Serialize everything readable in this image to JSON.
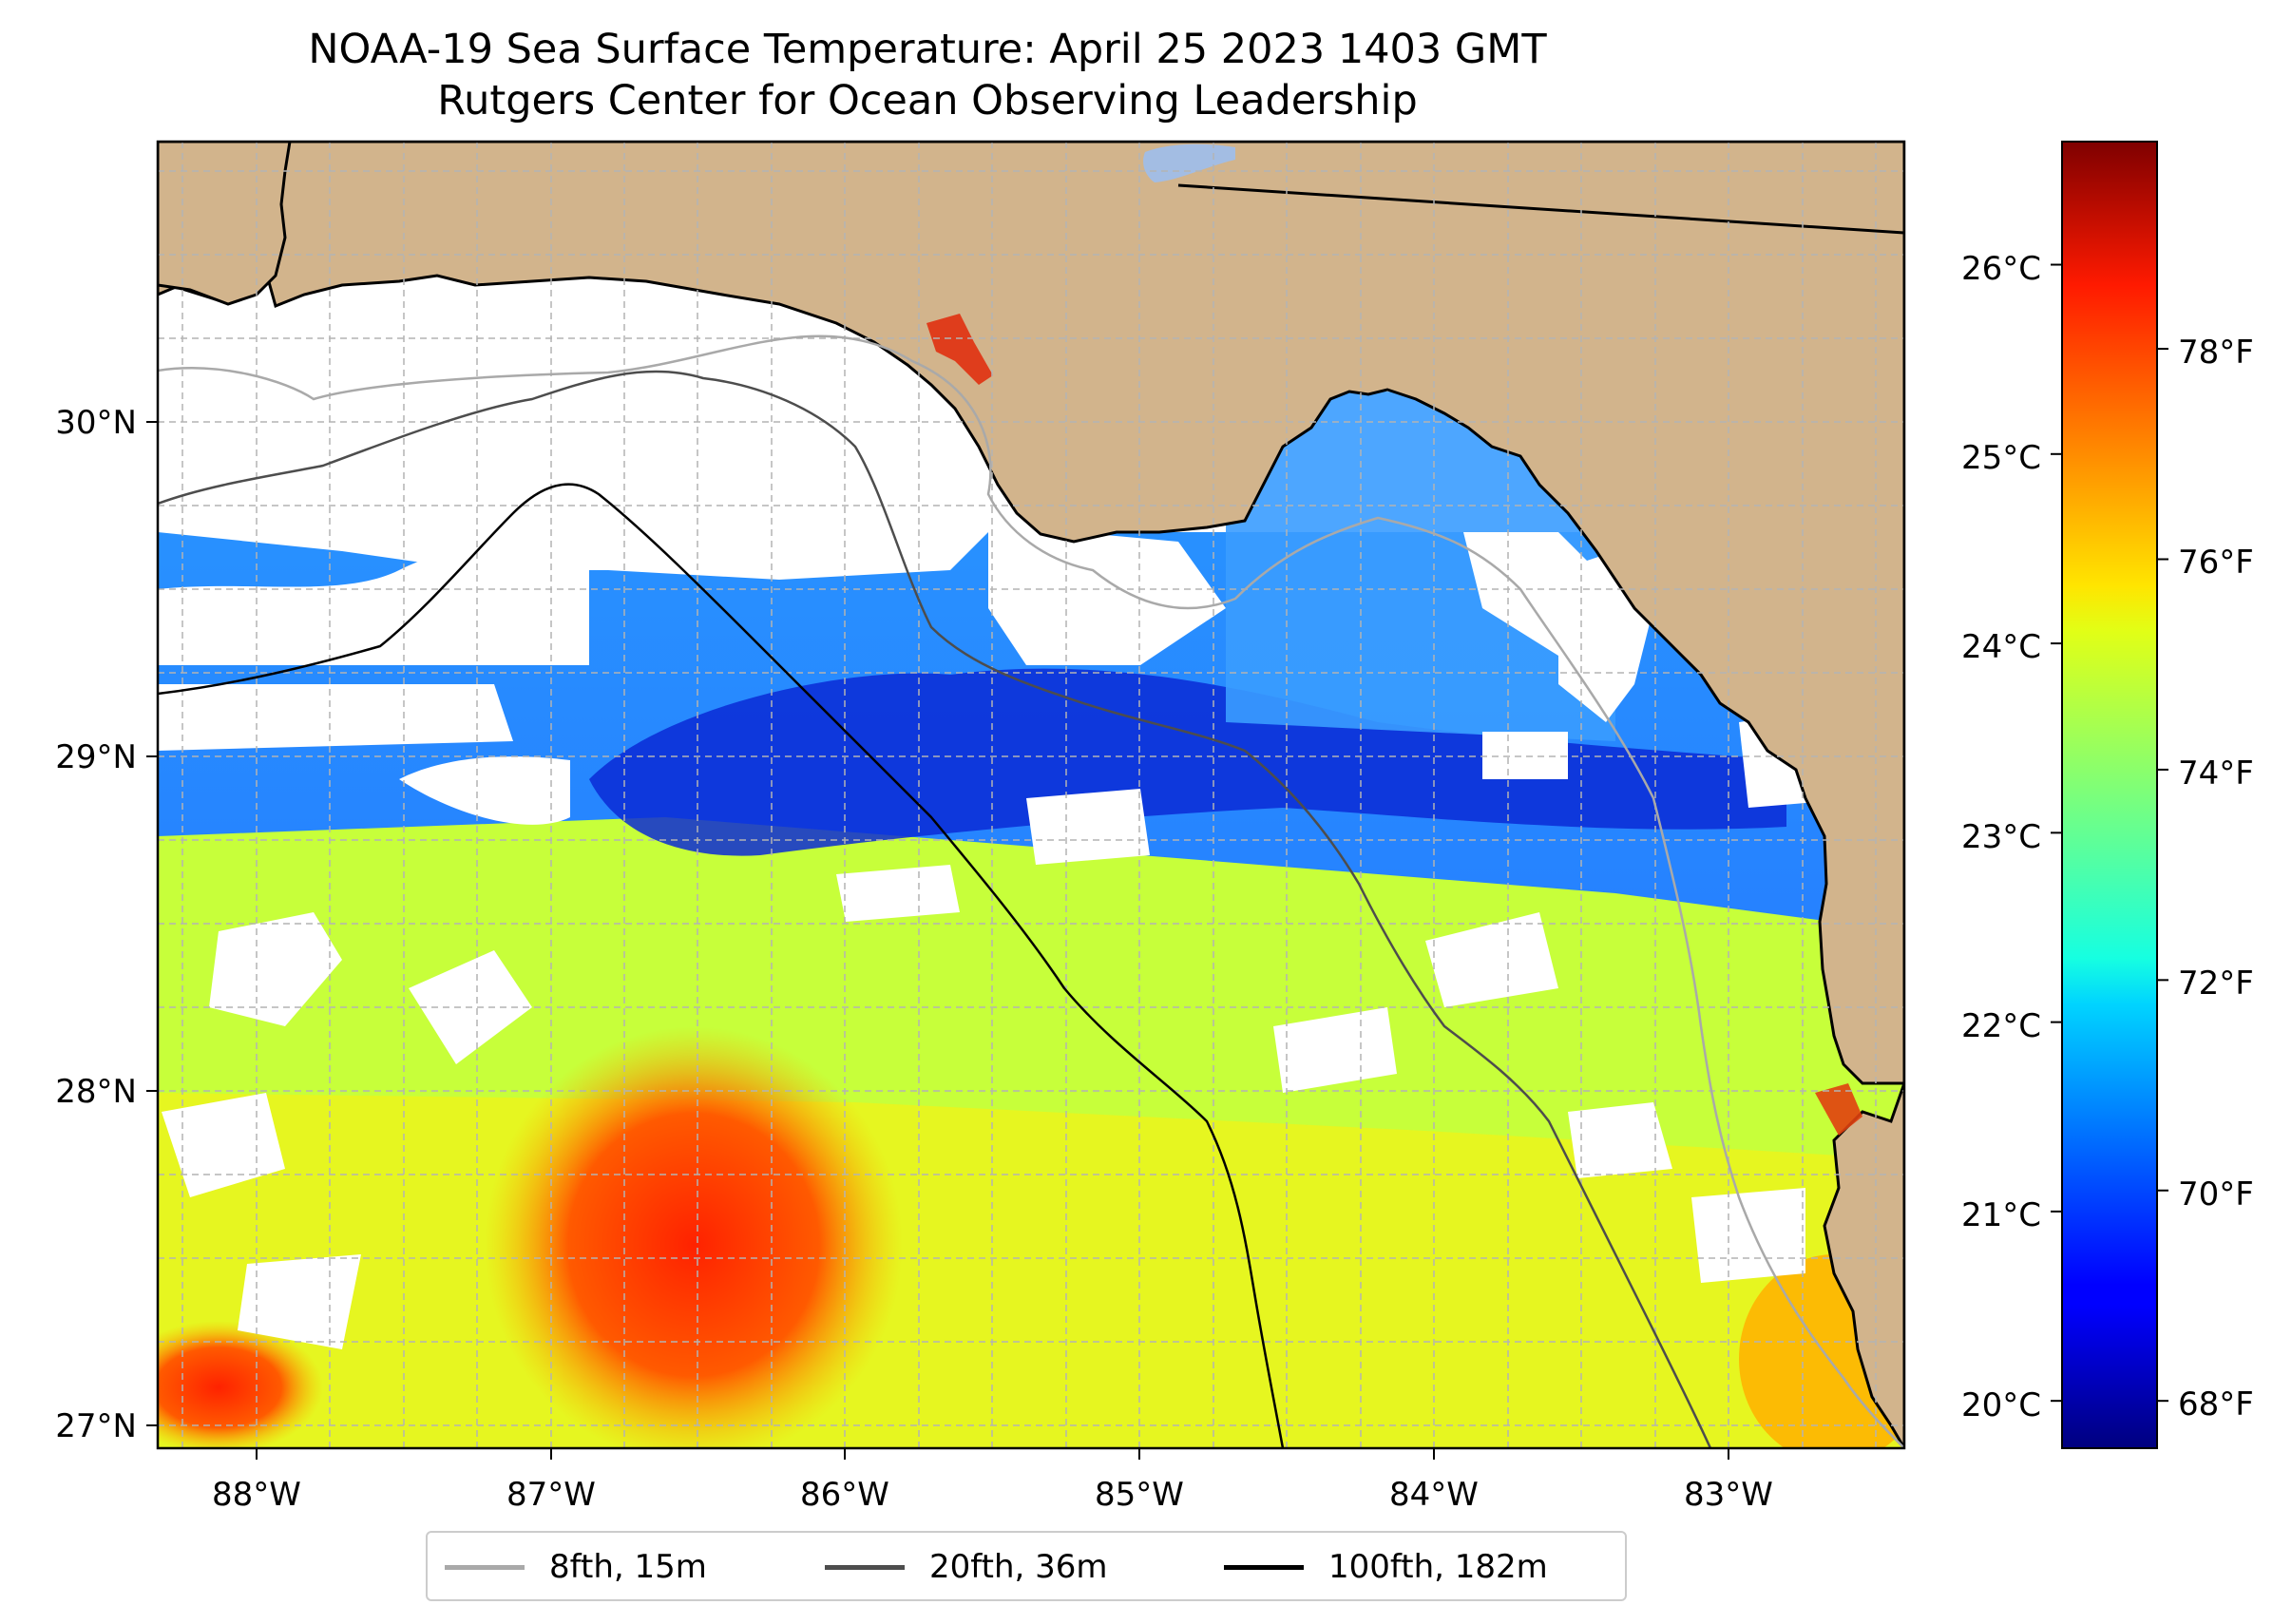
{
  "title": {
    "line1": "NOAA-19 Sea Surface Temperature: April 25 2023 1403 GMT",
    "line2": "Rutgers Center for Ocean Observing Leadership"
  },
  "map": {
    "lon_range": [
      -88.33,
      -82.4
    ],
    "lat_range": [
      26.93,
      30.83
    ],
    "lon_ticks": [
      {
        "value": -88,
        "label": "88°W"
      },
      {
        "value": -87,
        "label": "87°W"
      },
      {
        "value": -86,
        "label": "86°W"
      },
      {
        "value": -85,
        "label": "85°W"
      },
      {
        "value": -84,
        "label": "84°W"
      },
      {
        "value": -83,
        "label": "83°W"
      }
    ],
    "lat_ticks": [
      {
        "value": 27,
        "label": "27°N"
      },
      {
        "value": 28,
        "label": "28°N"
      },
      {
        "value": 29,
        "label": "29°N"
      },
      {
        "value": 30,
        "label": "30°N"
      }
    ],
    "gridlines": "dashed every 0.25°",
    "land_color": "#d2b48c",
    "missing_data_color": "#ffffff"
  },
  "colorbar": {
    "colormap": "jet",
    "celsius_range": [
      19.75,
      26.65
    ],
    "celsius_ticks": [
      {
        "value": 20,
        "label": "20°C"
      },
      {
        "value": 21,
        "label": "21°C"
      },
      {
        "value": 22,
        "label": "22°C"
      },
      {
        "value": 23,
        "label": "23°C"
      },
      {
        "value": 24,
        "label": "24°C"
      },
      {
        "value": 25,
        "label": "25°C"
      },
      {
        "value": 26,
        "label": "26°C"
      }
    ],
    "fahrenheit_ticks": [
      {
        "value": 68,
        "label": "68°F"
      },
      {
        "value": 70,
        "label": "70°F"
      },
      {
        "value": 72,
        "label": "72°F"
      },
      {
        "value": 74,
        "label": "74°F"
      },
      {
        "value": 76,
        "label": "76°F"
      },
      {
        "value": 78,
        "label": "78°F"
      }
    ]
  },
  "legend": [
    {
      "label": "8fth, 15m",
      "color": "#a9a9a9"
    },
    {
      "label": "20fth, 36m",
      "color": "#4d4d4d"
    },
    {
      "label": "100fth, 182m",
      "color": "#000000"
    }
  ]
}
